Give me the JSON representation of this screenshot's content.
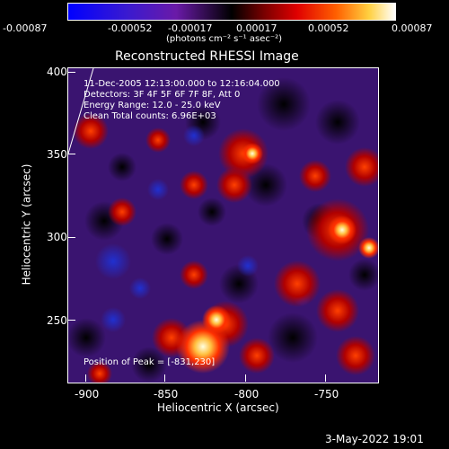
{
  "colorbar": {
    "tick_labels": [
      "-0.00087",
      "-0.00052",
      "-0.00017",
      "0.00017",
      "0.00052",
      "0.00087"
    ],
    "unit_label": "(photons cm⁻² s⁻¹ asec⁻²)",
    "colors": [
      "#0000ff",
      "#5020c0",
      "#7a18a0",
      "#000000",
      "#8b0000",
      "#ff2000",
      "#ff8c00",
      "#ffff70",
      "#ffffff"
    ]
  },
  "plot": {
    "title": "Reconstructed RHESSI Image",
    "xlabel": "Heliocentric X (arcsec)",
    "ylabel": "Heliocentric Y (arcsec)",
    "x_ticks": [
      "-900",
      "-850",
      "-800",
      "-750"
    ],
    "y_ticks": [
      "400",
      "350",
      "300",
      "250"
    ],
    "info_lines": [
      "11-Dec-2005 12:13:00.000 to 12:16:04.000",
      "Detectors: 3F 4F 5F 6F 7F 8F, Att 0",
      "Energy Range: 12.0 - 25.0 keV",
      "Clean     Total counts: 6.96E+03"
    ],
    "peak_text": "Position of Peak = [-831,230]"
  },
  "footer": {
    "date": "3-May-2022 19:01"
  }
}
